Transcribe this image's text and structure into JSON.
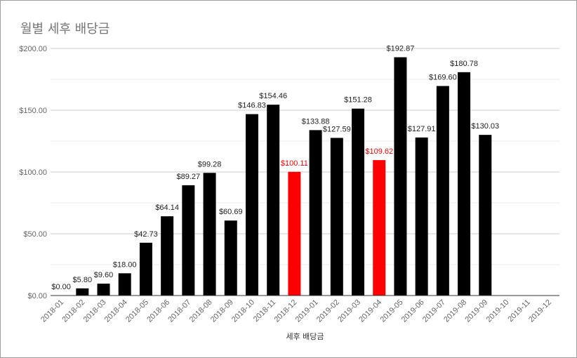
{
  "chart_data": {
    "type": "bar",
    "title": "월별 세후 배당금",
    "xlabel": "세후 배당금",
    "ylabel": "",
    "ylim": [
      0,
      200
    ],
    "y_ticks": [
      "$0.00",
      "$50.00",
      "$100.00",
      "$150.00",
      "$200.00"
    ],
    "y_tick_values": [
      0,
      50,
      100,
      150,
      200
    ],
    "grid": true,
    "legend": "none",
    "colors": {
      "default": "#000000",
      "highlight": "#ff0000",
      "highlight_label": "#ff0000",
      "label": "#222222"
    },
    "categories": [
      "2018-01",
      "2018-02",
      "2018-03",
      "2018-04",
      "2018-05",
      "2018-06",
      "2018-07",
      "2018-08",
      "2018-09",
      "2018-10",
      "2018-11",
      "2018-12",
      "2019-01",
      "2019-02",
      "2019-03",
      "2019-04",
      "2019-05",
      "2019-06",
      "2019-07",
      "2019-08",
      "2019-09",
      "2019-10",
      "2019-11",
      "2019-12"
    ],
    "values": [
      0,
      5.8,
      9.6,
      18.0,
      42.73,
      64.14,
      89.27,
      99.28,
      60.69,
      146.83,
      154.46,
      100.11,
      133.88,
      127.59,
      151.28,
      109.62,
      192.87,
      127.91,
      169.6,
      180.78,
      130.03,
      null,
      null,
      null
    ],
    "labels": [
      "$0.00",
      "$5.80",
      "$9.60",
      "$18.00",
      "$42.73",
      "$64.14",
      "$89.27",
      "$99.28",
      "$60.69",
      "$146.83",
      "$154.46",
      "$100.11",
      "$133.88",
      "$127.59",
      "$151.28",
      "$109.62",
      "$192.87",
      "$127.91",
      "$169.60",
      "$180.78",
      "$130.03",
      "",
      "",
      ""
    ],
    "highlighted": [
      "2018-12",
      "2019-04"
    ]
  }
}
